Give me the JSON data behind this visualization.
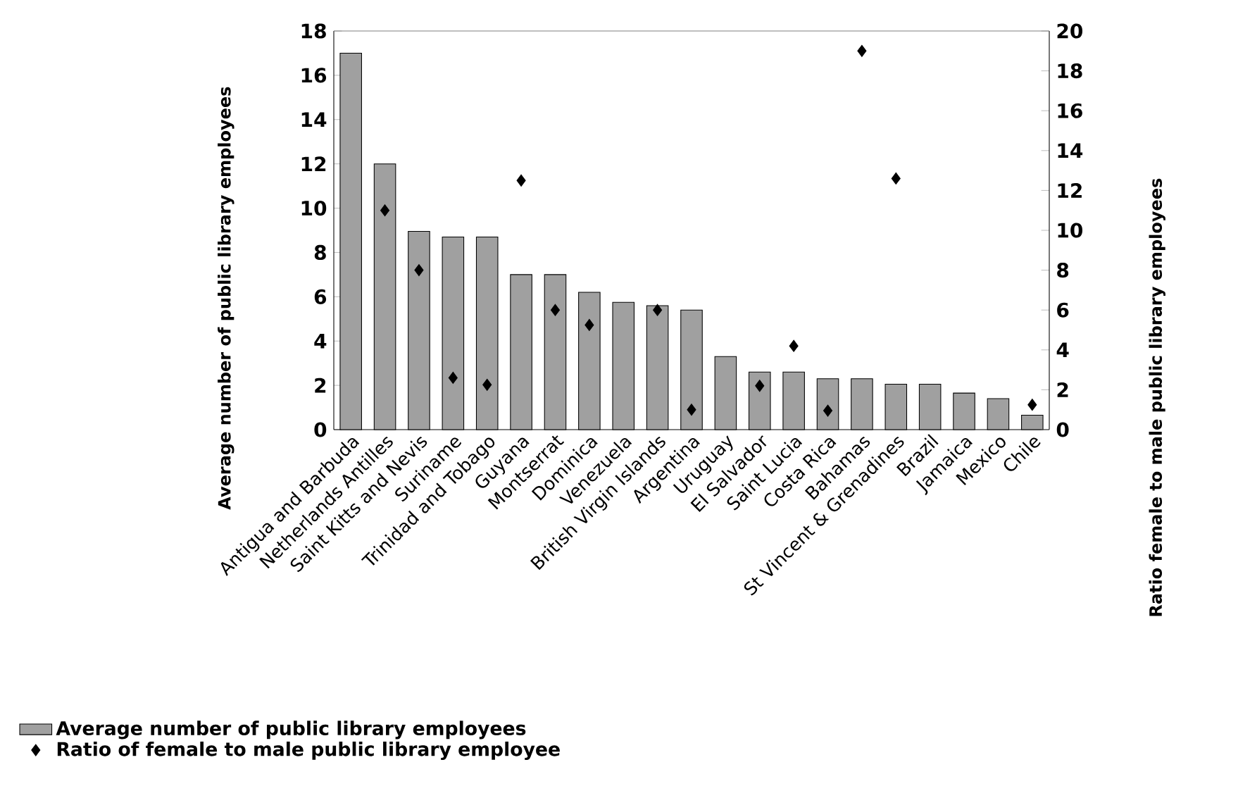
{
  "chart_data": {
    "type": "bar",
    "ylabel": "Average number of public library employees",
    "y2label": "Ratio female to male public library employees",
    "categories": [
      "Antigua and Barbuda",
      "Netherlands Antilles",
      "Saint Kitts and Nevis",
      "Suriname",
      "Trinidad and Tobago",
      "Guyana",
      "Montserrat",
      "Dominica",
      "Venezuela",
      "British Virgin Islands",
      "Argentina",
      "Uruguay",
      "El Salvador",
      "Saint Lucia",
      "Costa Rica",
      "Bahamas",
      "St Vincent & Grenadines",
      "Brazil",
      "Jamaica",
      "Mexico",
      "Chile"
    ],
    "series": [
      {
        "name": "Average number of public library employees",
        "color": "#a0a0a0",
        "values": [
          17,
          12,
          8.95,
          8.7,
          8.7,
          7.0,
          7.0,
          6.2,
          5.75,
          5.6,
          5.4,
          3.3,
          2.6,
          2.6,
          2.3,
          2.3,
          2.05,
          2.05,
          1.65,
          1.4,
          0.65
        ]
      },
      {
        "name": "Ratio of female to male public library employee",
        "type": "scatter",
        "axis": "y2",
        "color": "#000000",
        "marker": "diamond",
        "values": [
          null,
          11.0,
          8.0,
          2.6,
          2.25,
          12.5,
          6.0,
          5.25,
          null,
          6.0,
          1.0,
          null,
          2.2,
          4.2,
          0.95,
          19.0,
          12.6,
          null,
          null,
          null,
          1.25
        ]
      }
    ],
    "ylim": [
      0,
      18
    ],
    "yticks": [
      0,
      2,
      4,
      6,
      8,
      10,
      12,
      14,
      16,
      18
    ],
    "y2lim": [
      0,
      20
    ],
    "y2ticks": [
      0,
      2,
      4,
      6,
      8,
      10,
      12,
      14,
      16,
      18,
      20
    ],
    "legend": "bottom left"
  }
}
